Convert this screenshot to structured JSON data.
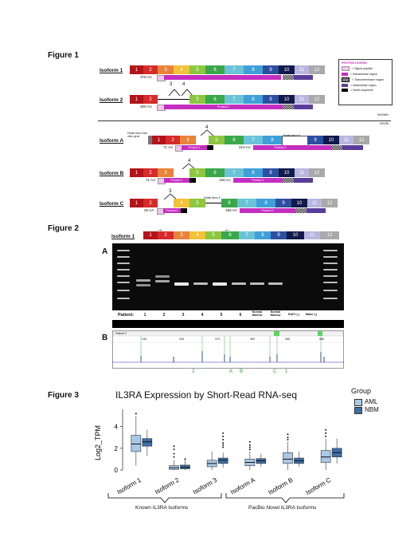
{
  "figure1": {
    "label": "Figure 1",
    "legend": {
      "title": "PROTEIN LEGEND",
      "items": [
        {
          "text": "= Signal peptide",
          "color": "#f2c6ee"
        },
        {
          "text": "= Extracellular region",
          "color": "#c42ec0"
        },
        {
          "text": "= Transmembrane region",
          "color": "checker"
        },
        {
          "text": "= Intracellular region",
          "color": "#5a3d9a"
        },
        {
          "text": "= Novel sequence",
          "color": "#000000"
        }
      ]
    },
    "known_label": "KNOWN",
    "novel_label": "NOVEL",
    "isoforms": {
      "iso1": {
        "name": "Isoform 1",
        "aa": "378 AA"
      },
      "iso2": {
        "name": "Isoform 2",
        "aa": "300 AA",
        "product": "Product 1",
        "splice": [
          "3",
          "4"
        ]
      },
      "isoA": {
        "name": "Isoform A",
        "aa1": "71 AA",
        "aa2": "210 AA",
        "p1": "Product 1",
        "p2": "Product 2",
        "splice": "4",
        "note_left": "Partial intron from other gene",
        "note_right": "Partial intron 8"
      },
      "isoB": {
        "name": "Isoform B",
        "aa1": "71 AA",
        "aa2": "166 AA",
        "p1": "Product 1",
        "p2": "Product 2",
        "splice": "4"
      },
      "isoC": {
        "name": "Isoform C",
        "aa1": "25 AA",
        "aa2": "166 AA",
        "p1": "Product 1",
        "p2": "Product 2",
        "splice": "3",
        "note": "Partial intron 5"
      }
    }
  },
  "figure2": {
    "label": "Figure 2",
    "isoform_label": "Isoform 1",
    "panel_a": "A",
    "panel_b": "B",
    "patient_label": "Patient:",
    "lanes": [
      "1",
      "2",
      "3",
      "4",
      "5",
      "6",
      "Normal Marrow",
      "Normal Marrow",
      "RAF1 (-)",
      "Water (-)"
    ],
    "trace_header": "Patient 2",
    "trace_ticks": [
      "135",
      "225",
      "373",
      "409",
      "495",
      "585"
    ],
    "trace_marks": [
      "2",
      "A",
      "B",
      "C",
      "1"
    ]
  },
  "figure3": {
    "label": "Figure 3",
    "chart_data": {
      "type": "box",
      "title": "IL3RA Expression by Short-Read RNA-seq",
      "ylabel": "Log2_TPM",
      "ylim": [
        0,
        5.6
      ],
      "yticks": [
        0,
        2,
        4
      ],
      "categories": [
        "Isoform 1",
        "Isoform 2",
        "Isoform 3",
        "Isoform A",
        "Isoform B",
        "Isoform C"
      ],
      "legend_title": "Group",
      "series": [
        {
          "name": "AML",
          "color": "#a9c9e6",
          "boxes": [
            {
              "min": 0.4,
              "q1": 1.7,
              "median": 2.4,
              "q3": 3.2,
              "max": 5.0,
              "outliers": [
                5.2
              ]
            },
            {
              "min": 0.0,
              "q1": 0.05,
              "median": 0.2,
              "q3": 0.4,
              "max": 0.9,
              "outliers": [
                1.2,
                1.5,
                1.9,
                2.2
              ]
            },
            {
              "min": 0.0,
              "q1": 0.3,
              "median": 0.6,
              "q3": 0.9,
              "max": 1.7,
              "outliers": []
            },
            {
              "min": 0.0,
              "q1": 0.4,
              "median": 0.7,
              "q3": 1.0,
              "max": 1.7,
              "outliers": [
                1.9,
                2.1,
                2.3,
                2.6
              ]
            },
            {
              "min": 0.0,
              "q1": 0.6,
              "median": 1.0,
              "q3": 1.6,
              "max": 2.6,
              "outliers": [
                2.8,
                3.0,
                3.3
              ]
            },
            {
              "min": 0.0,
              "q1": 0.7,
              "median": 1.2,
              "q3": 1.8,
              "max": 2.9,
              "outliers": [
                3.1,
                3.4,
                3.7
              ]
            }
          ]
        },
        {
          "name": "NBM",
          "color": "#3c6fa8",
          "boxes": [
            {
              "min": 1.3,
              "q1": 2.2,
              "median": 2.6,
              "q3": 2.9,
              "max": 3.7,
              "outliers": []
            },
            {
              "min": 0.0,
              "q1": 0.1,
              "median": 0.25,
              "q3": 0.45,
              "max": 0.9,
              "outliers": [
                1.0
              ]
            },
            {
              "min": 0.2,
              "q1": 0.6,
              "median": 0.9,
              "q3": 1.1,
              "max": 1.6,
              "outliers": [
                2.1,
                2.3,
                2.5,
                2.8,
                3.1,
                3.4
              ]
            },
            {
              "min": 0.3,
              "q1": 0.6,
              "median": 0.85,
              "q3": 1.05,
              "max": 1.5,
              "outliers": []
            },
            {
              "min": 0.3,
              "q1": 0.6,
              "median": 0.85,
              "q3": 1.1,
              "max": 1.7,
              "outliers": []
            },
            {
              "min": 0.6,
              "q1": 1.2,
              "median": 1.6,
              "q3": 2.0,
              "max": 2.9,
              "outliers": []
            }
          ]
        }
      ]
    },
    "group_labels": [
      "Known IL3RA Isoforms",
      "PacBio Novel IL3RA Isoforms"
    ]
  }
}
